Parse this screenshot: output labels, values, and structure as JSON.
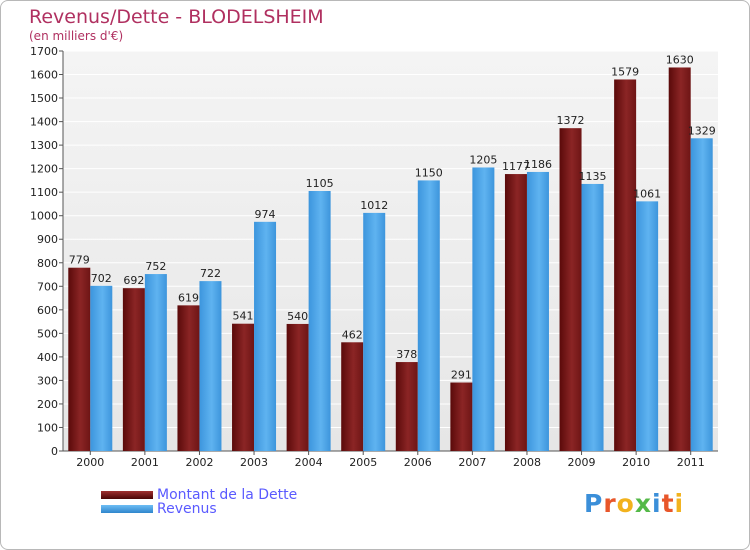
{
  "chart_data": {
    "type": "bar",
    "title": "Revenus/Dette - BLODELSHEIM",
    "subtitle": "(en milliers d'€)",
    "categories": [
      "2000",
      "2001",
      "2002",
      "2003",
      "2004",
      "2005",
      "2006",
      "2007",
      "2008",
      "2009",
      "2010",
      "2011"
    ],
    "series": [
      {
        "name": "Montant de la Dette",
        "values": [
          779,
          692,
          619,
          541,
          540,
          462,
          378,
          291,
          1177,
          1372,
          1579,
          1630
        ],
        "color": "#7a1a1a"
      },
      {
        "name": "Revenus",
        "values": [
          702,
          752,
          722,
          974,
          1105,
          1012,
          1150,
          1205,
          1186,
          1135,
          1061,
          1329
        ],
        "color": "#4da6e8"
      }
    ],
    "ylim": [
      0,
      1700
    ],
    "ytick_step": 100,
    "grid": true,
    "legend_placement": "bottom-left"
  },
  "logo": {
    "text": "Proxiti",
    "colors": [
      "#3b8fd9",
      "#e8562a",
      "#f2b21d",
      "#54b948",
      "#3b8fd9",
      "#e8562a",
      "#f2b21d"
    ]
  }
}
